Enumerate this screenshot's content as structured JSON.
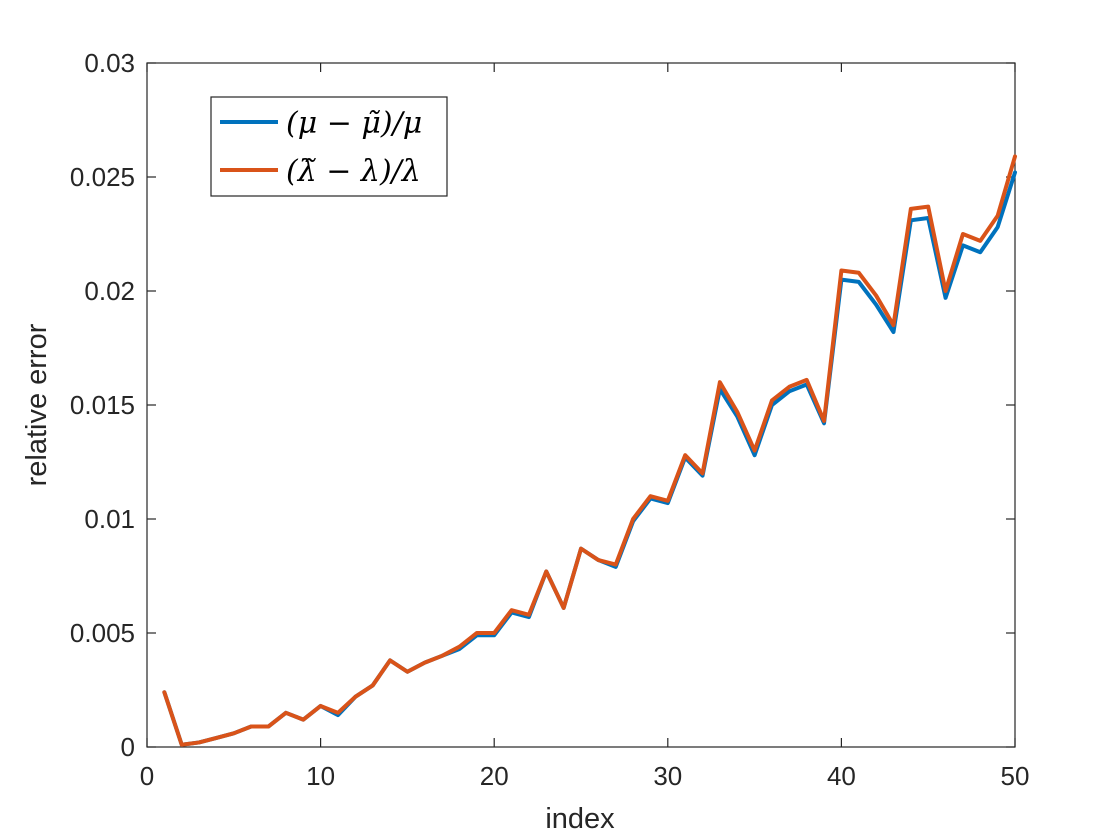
{
  "chart_data": {
    "type": "line",
    "title": "",
    "xlabel": "index",
    "ylabel": "relative error",
    "xlim": [
      0,
      50
    ],
    "ylim": [
      0,
      0.03
    ],
    "x_ticks": [
      "0",
      "10",
      "20",
      "30",
      "40",
      "50"
    ],
    "y_ticks": [
      "0",
      "0.005",
      "0.01",
      "0.015",
      "0.02",
      "0.025",
      "0.03"
    ],
    "grid": false,
    "legend_position": "top-left",
    "x": [
      1,
      2,
      3,
      4,
      5,
      6,
      7,
      8,
      9,
      10,
      11,
      12,
      13,
      14,
      15,
      16,
      17,
      18,
      19,
      20,
      21,
      22,
      23,
      24,
      25,
      26,
      27,
      28,
      29,
      30,
      31,
      32,
      33,
      34,
      35,
      36,
      37,
      38,
      39,
      40,
      41,
      42,
      43,
      44,
      45,
      46,
      47,
      48,
      49,
      50
    ],
    "series": [
      {
        "name": "(μ − μ̃)/μ",
        "color": "#0072BD",
        "values": [
          0.0024,
          0.0001,
          0.0002,
          0.0004,
          0.0006,
          0.0009,
          0.0009,
          0.0015,
          0.0012,
          0.0018,
          0.0014,
          0.0022,
          0.0027,
          0.0038,
          0.0033,
          0.0037,
          0.004,
          0.0043,
          0.0049,
          0.0049,
          0.0059,
          0.0057,
          0.0077,
          0.0061,
          0.0087,
          0.0082,
          0.0079,
          0.0099,
          0.0109,
          0.0107,
          0.0127,
          0.0119,
          0.0157,
          0.0145,
          0.0128,
          0.015,
          0.0156,
          0.0159,
          0.0142,
          0.0205,
          0.0204,
          0.0194,
          0.0182,
          0.0231,
          0.0232,
          0.0197,
          0.022,
          0.0217,
          0.0228,
          0.0252
        ]
      },
      {
        "name": "(λ̃ − λ)/λ",
        "color": "#D95319",
        "values": [
          0.0024,
          0.0001,
          0.0002,
          0.0004,
          0.0006,
          0.0009,
          0.0009,
          0.0015,
          0.0012,
          0.0018,
          0.0015,
          0.0022,
          0.0027,
          0.0038,
          0.0033,
          0.0037,
          0.004,
          0.0044,
          0.005,
          0.005,
          0.006,
          0.0058,
          0.0077,
          0.0061,
          0.0087,
          0.0082,
          0.008,
          0.01,
          0.011,
          0.0108,
          0.0128,
          0.012,
          0.016,
          0.0147,
          0.013,
          0.0152,
          0.0158,
          0.0161,
          0.0143,
          0.0209,
          0.0208,
          0.0198,
          0.0185,
          0.0236,
          0.0237,
          0.02,
          0.0225,
          0.0222,
          0.0233,
          0.0259
        ]
      }
    ]
  }
}
